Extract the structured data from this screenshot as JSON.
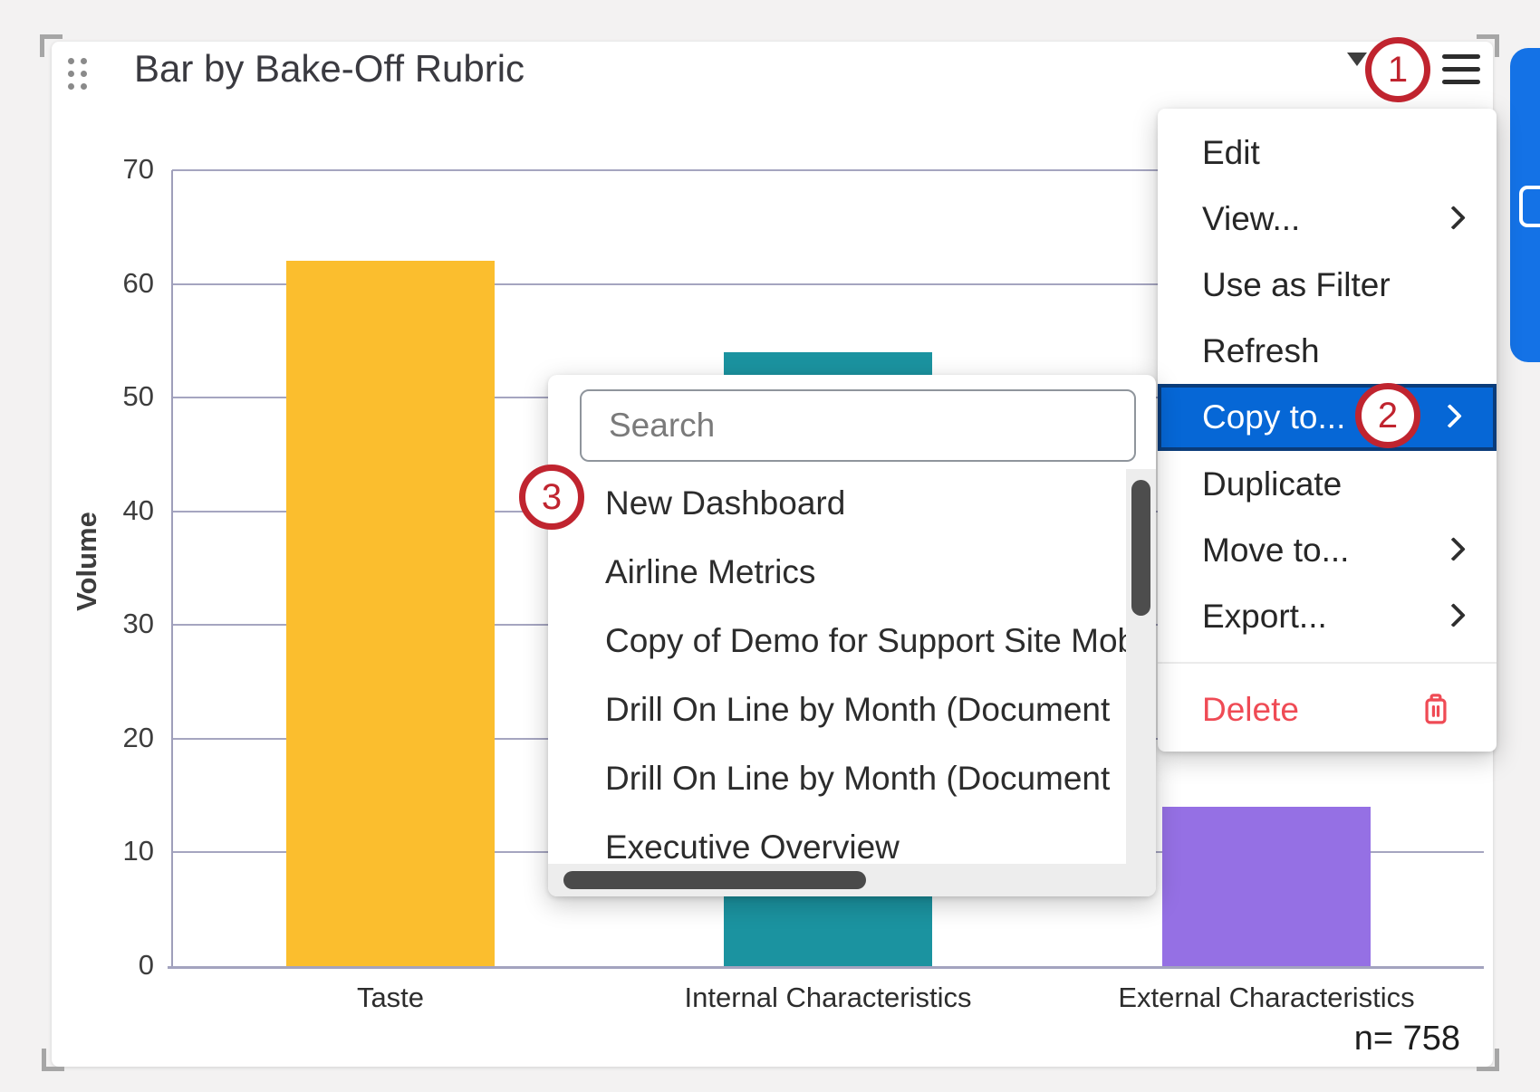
{
  "widget": {
    "title": "Bar by Bake-Off Rubric",
    "sample_size_label": "n= 758"
  },
  "chart_data": {
    "type": "bar",
    "title": "Bar by Bake-Off Rubric",
    "categories": [
      "Taste",
      "Internal Characteristics",
      "External Characteristics"
    ],
    "values": [
      62,
      54,
      14
    ],
    "bar_colors": [
      "#FBBE2E",
      "#1B93A0",
      "#9570E4"
    ],
    "xlabel": "",
    "ylabel": "Volume",
    "ylim": [
      0,
      70
    ],
    "ytick_step": 10,
    "grid": true,
    "legend": false,
    "annotation": "n= 758"
  },
  "context_menu": {
    "items": [
      {
        "label": "Edit"
      },
      {
        "label": "View...",
        "has_submenu": true
      },
      {
        "label": "Use as Filter"
      },
      {
        "label": "Refresh"
      },
      {
        "label": "Copy to...",
        "has_submenu": true,
        "selected": true
      },
      {
        "label": "Duplicate"
      },
      {
        "label": "Move to...",
        "has_submenu": true
      },
      {
        "label": "Export...",
        "has_submenu": true
      },
      {
        "label": "Delete",
        "danger": true,
        "icon": "trash-icon",
        "separator_before": true
      }
    ]
  },
  "copy_to_submenu": {
    "search_placeholder": "Search",
    "search_value": "",
    "items": [
      "New Dashboard",
      "Airline Metrics",
      "Copy of Demo for Support Site Mob",
      "Drill On Line by Month (Document",
      "Drill On Line by Month (Document",
      "Executive Overview"
    ]
  },
  "annotations": {
    "step1": "1",
    "step2": "2",
    "step3": "3"
  },
  "colors": {
    "selected_row_blue": "#0667D6",
    "selected_row_border": "#0A3C7A",
    "danger_red": "#EF4B55",
    "annotation_red": "#C0242F",
    "right_panel_blue": "#1472E6",
    "gridline": "#A5A5C0",
    "bar_yellow": "#FBBE2E",
    "bar_teal": "#1B93A0",
    "bar_purple": "#9570E4"
  }
}
